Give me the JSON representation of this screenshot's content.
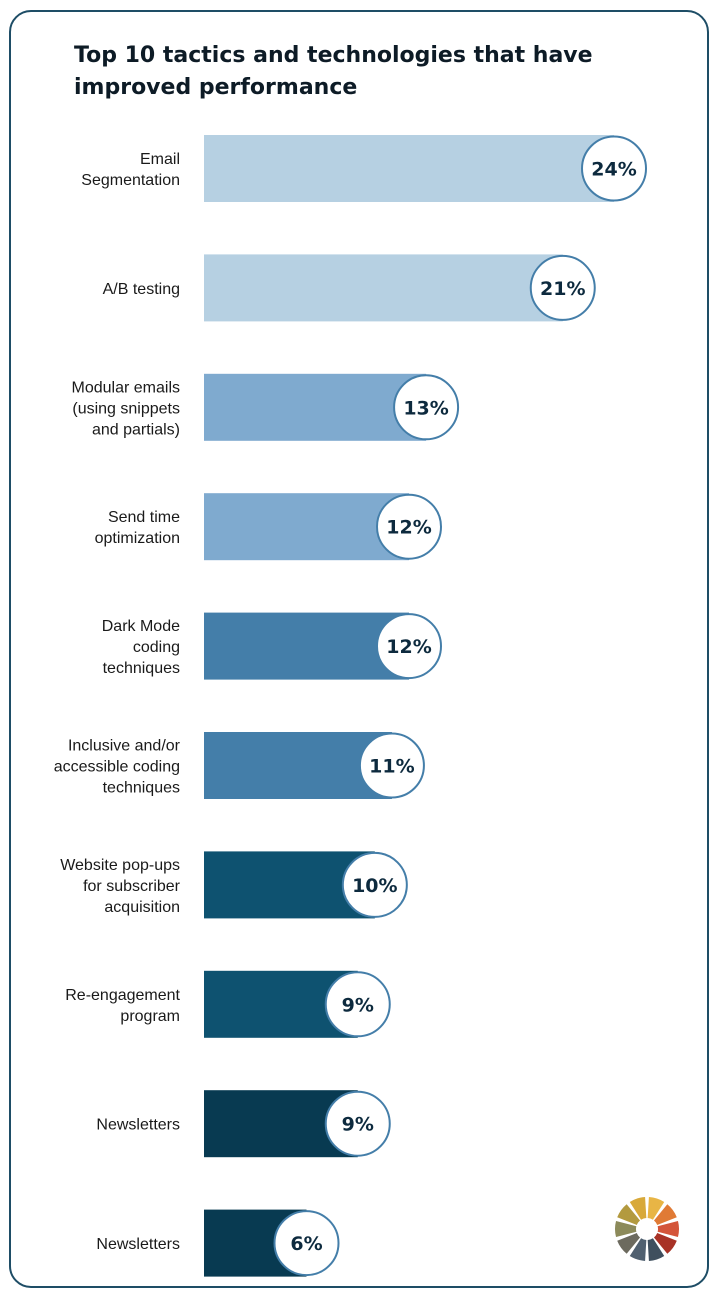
{
  "title": "Top 10 tactics and technologies that have improved performance",
  "chart_data": {
    "type": "bar",
    "orientation": "horizontal",
    "title": "Top 10 tactics and technologies that have improved performance",
    "categories": [
      "Email\nSegmentation",
      "A/B testing",
      "Modular emails\n(using snippets\nand partials)",
      "Send time\noptimization",
      "Dark Mode\ncoding\ntechniques",
      "Inclusive and/or\naccessible coding\ntechniques",
      "Website pop-ups\nfor subscriber\nacquisition",
      "Re-engagement\nprogram",
      "Newsletters",
      "Newsletters"
    ],
    "values": [
      24,
      21,
      13,
      12,
      12,
      11,
      10,
      9,
      9,
      6
    ],
    "value_labels": [
      "24%",
      "21%",
      "13%",
      "12%",
      "12%",
      "11%",
      "10%",
      "9%",
      "9%",
      "6%"
    ],
    "bar_colors": [
      "#b6d0e2",
      "#b6d0e2",
      "#7faacf",
      "#7faacf",
      "#447ea9",
      "#447ea9",
      "#0e5270",
      "#0e5270",
      "#083a51",
      "#083a51"
    ],
    "bubble_border": "#447ea9",
    "xlim": [
      0,
      24
    ],
    "grid": false,
    "legend": "none"
  },
  "logo": {
    "icon": "color-wheel-logo",
    "colors": [
      "#e8b545",
      "#e07a35",
      "#d4553a",
      "#a83226",
      "#3f4f5e",
      "#506070",
      "#6c6a5e",
      "#8c8a5a",
      "#b39a3f",
      "#d8a93a"
    ]
  }
}
